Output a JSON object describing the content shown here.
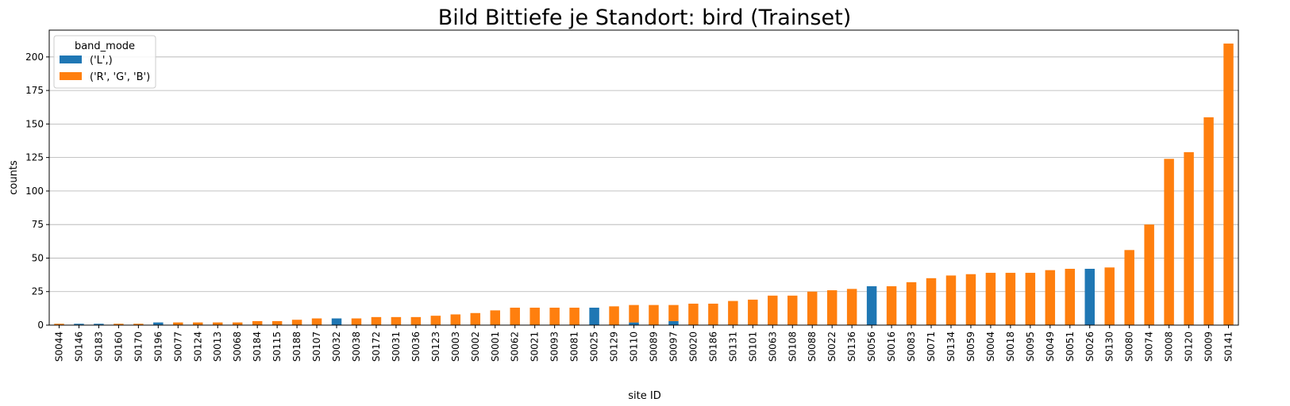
{
  "chart_data": {
    "type": "bar",
    "stacked": true,
    "title": "Bild Bittiefe je Standort: bird (Trainset)",
    "xlabel": "site ID",
    "ylabel": "counts",
    "ylim": [
      0,
      220
    ],
    "yticks": [
      0,
      25,
      50,
      75,
      100,
      125,
      150,
      175,
      200
    ],
    "grid": "horizontal",
    "legend": {
      "title": "band_mode",
      "placement": "upper-left"
    },
    "categories": [
      "S0044",
      "S0146",
      "S0183",
      "S0160",
      "S0170",
      "S0196",
      "S0077",
      "S0124",
      "S0013",
      "S0068",
      "S0184",
      "S0115",
      "S0188",
      "S0107",
      "S0032",
      "S0038",
      "S0172",
      "S0031",
      "S0036",
      "S0123",
      "S0003",
      "S0002",
      "S0001",
      "S0062",
      "S0021",
      "S0093",
      "S0081",
      "S0025",
      "S0129",
      "S0110",
      "S0089",
      "S0097",
      "S0020",
      "S0186",
      "S0131",
      "S0101",
      "S0063",
      "S0108",
      "S0088",
      "S0022",
      "S0136",
      "S0056",
      "S0016",
      "S0083",
      "S0071",
      "S0134",
      "S0059",
      "S0004",
      "S0018",
      "S0095",
      "S0049",
      "S0051",
      "S0026",
      "S0130",
      "S0080",
      "S0074",
      "S0008",
      "S0120",
      "S0009",
      "S0141"
    ],
    "series": [
      {
        "name": "('L',)",
        "color": "#1f77b4",
        "values": [
          0,
          1,
          1,
          0,
          0,
          2,
          0,
          0,
          0,
          0,
          0,
          0,
          0,
          0,
          5,
          0,
          0,
          0,
          0,
          0,
          0,
          0,
          0,
          0,
          0,
          0,
          0,
          13,
          0,
          2,
          0,
          3,
          0,
          0,
          0,
          0,
          0,
          0,
          0,
          0,
          0,
          29,
          0,
          0,
          0,
          0,
          0,
          0,
          0,
          0,
          0,
          0,
          42,
          0,
          0,
          0,
          0,
          0,
          0,
          0
        ]
      },
      {
        "name": "('R', 'G', 'B')",
        "color": "#ff7f0e",
        "values": [
          1,
          0,
          0,
          1,
          1,
          0,
          2,
          2,
          2,
          2,
          3,
          3,
          4,
          5,
          0,
          5,
          6,
          6,
          6,
          7,
          8,
          9,
          11,
          13,
          13,
          13,
          13,
          0,
          14,
          13,
          15,
          12,
          16,
          16,
          18,
          19,
          22,
          22,
          25,
          26,
          27,
          0,
          29,
          32,
          35,
          37,
          38,
          39,
          39,
          39,
          41,
          42,
          0,
          43,
          56,
          75,
          124,
          129,
          155,
          210
        ]
      }
    ]
  }
}
